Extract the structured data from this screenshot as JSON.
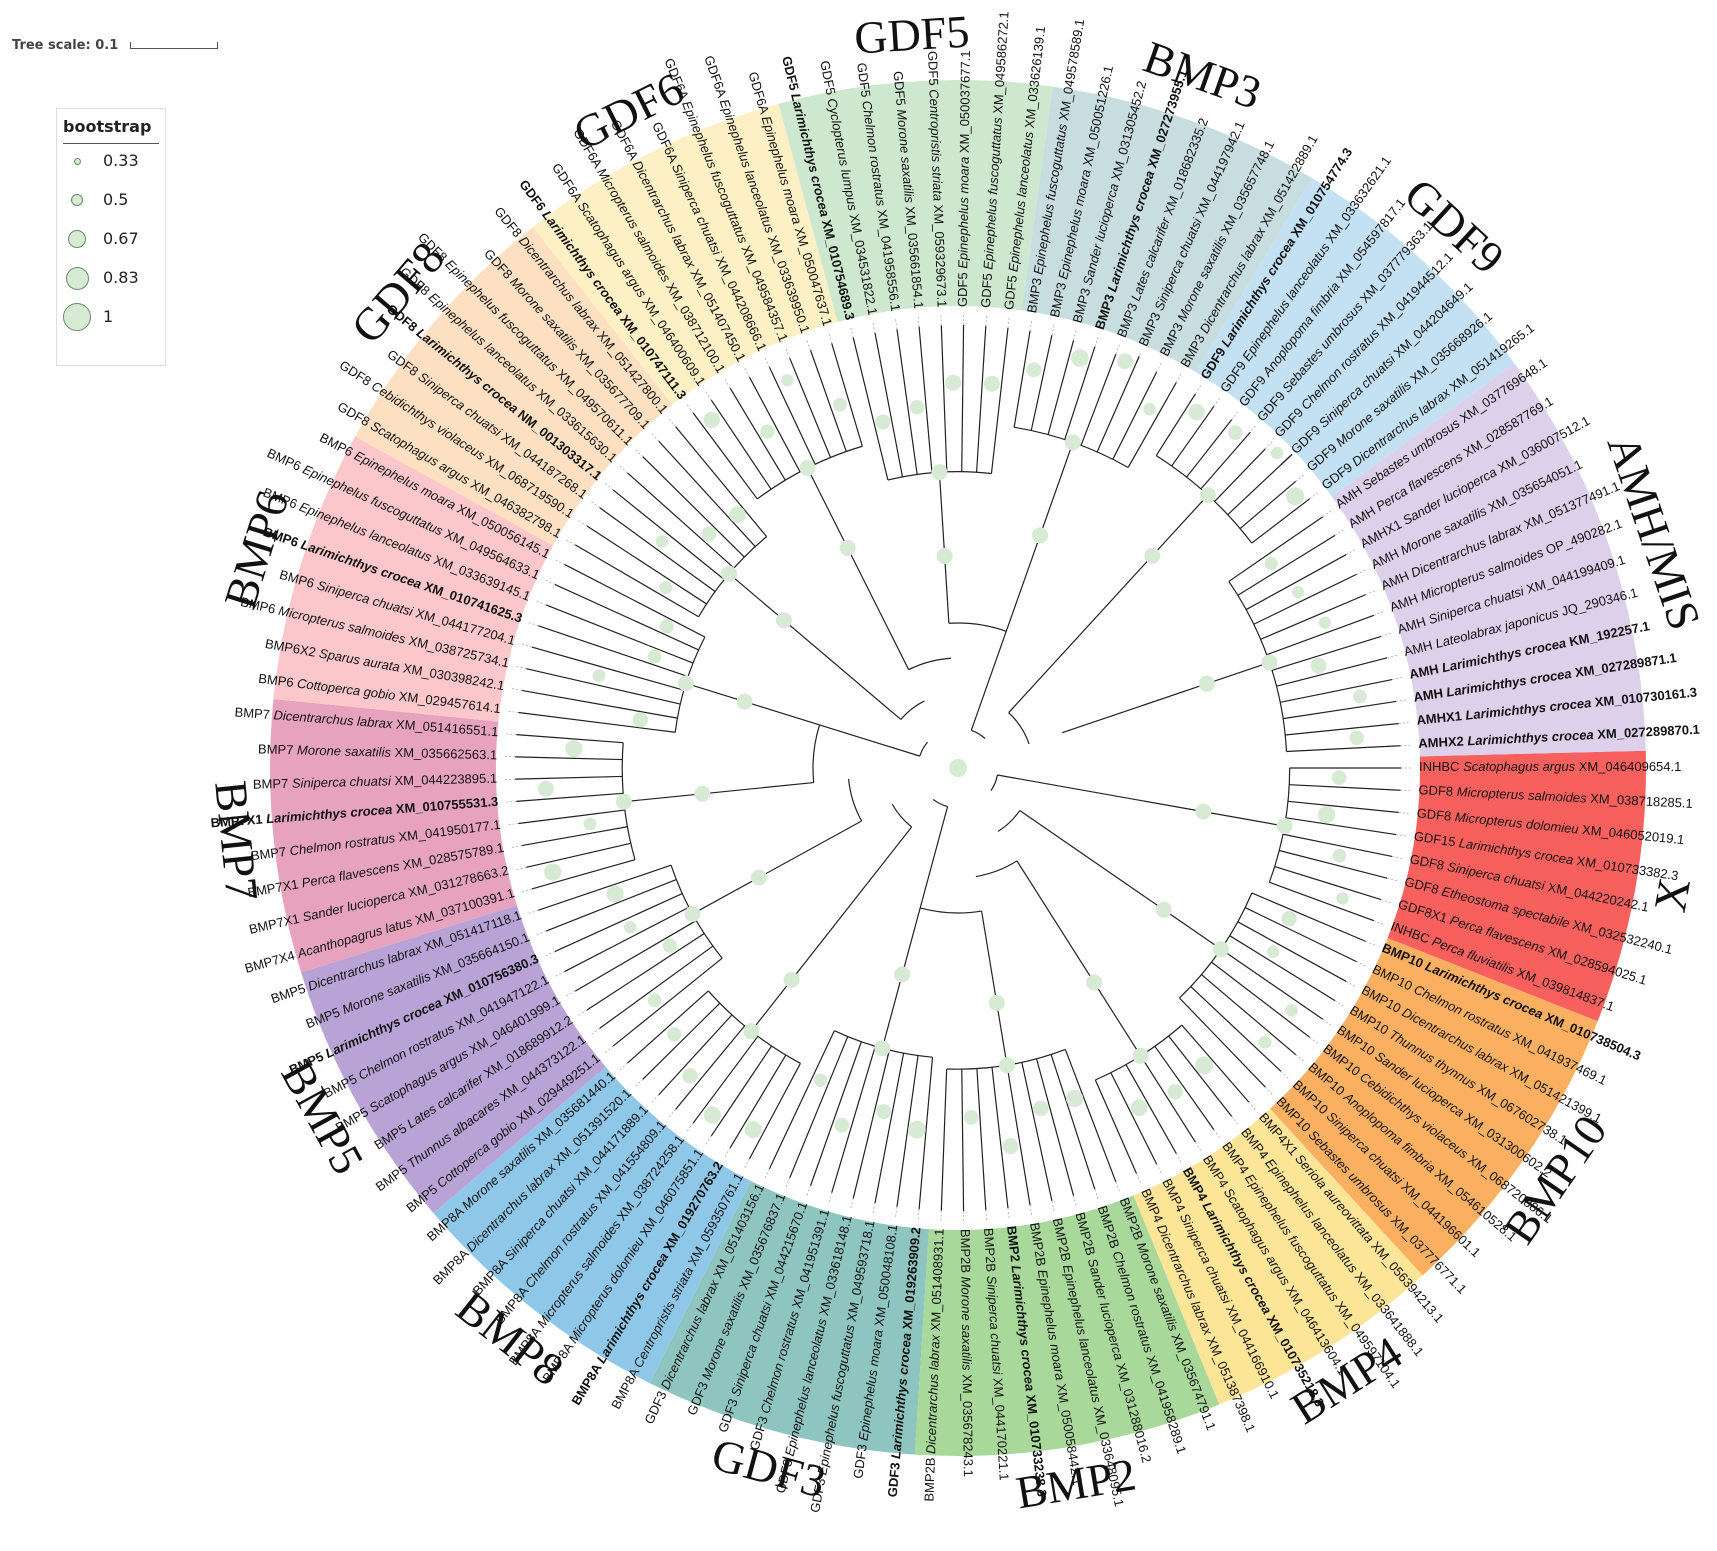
{
  "scale": {
    "label": "Tree scale: 0.1"
  },
  "legend": {
    "title": "bootstrap",
    "items": [
      {
        "value": "0.33"
      },
      {
        "value": "0.5"
      },
      {
        "value": "0.67"
      },
      {
        "value": "0.83"
      },
      {
        "value": "1"
      }
    ]
  },
  "clades": [
    {
      "name": "X",
      "color": "#f8605e",
      "leaves": [
        [
          "INHBC",
          "Scatophagus argus",
          "XM_046409654.1",
          false
        ],
        [
          "GDF8",
          "Micropterus salmoides",
          "XM_038718285.1",
          false
        ],
        [
          "GDF8",
          "Micropterus dolomieu",
          "XM_046052019.1",
          false
        ],
        [
          "GDF15",
          "Larimichthys crocea",
          "XM_010733382.3",
          false
        ],
        [
          "GDF8",
          "Siniperca chuatsi",
          "XM_044220242.1",
          false
        ],
        [
          "GDF8",
          "Etheostoma spectabile",
          "XM_032532240.1",
          false
        ],
        [
          "GDF8X1",
          "Perca flavescens",
          "XM_028594025.1",
          false
        ],
        [
          "INHBC",
          "Perca fluviatilis",
          "XM_039814837.1",
          false
        ]
      ]
    },
    {
      "name": "BMP10",
      "color": "#fbb061",
      "leaves": [
        [
          "BMP10",
          "Larimichthys crocea",
          "XM_010738504.3",
          true
        ],
        [
          "BMP10",
          "Chelmon rostratus",
          "XM_041937469.1",
          false
        ],
        [
          "BMP10",
          "Dicentrarchus labrax",
          "XM_051421399.1",
          false
        ],
        [
          "BMP10",
          "Thunnus thynnus",
          "XM_067602738.1",
          false
        ],
        [
          "BMP10",
          "Sander lucioperca",
          "XM_031300602.2",
          false
        ],
        [
          "BMP10",
          "Cebidichthys violaceus",
          "XM_068720886.1",
          false
        ],
        [
          "BMP10",
          "Anoplopoma fimbria",
          "XM_054610528.1",
          false
        ],
        [
          "BMP10",
          "Siniperca chuatsi",
          "XM_044196601.1",
          false
        ],
        [
          "BMP10",
          "Sebastes umbrosus",
          "XM_037776771.1",
          false
        ]
      ]
    },
    {
      "name": "BMP4",
      "color": "#fde598",
      "leaves": [
        [
          "BMP4X1",
          "Seriola aureovittata",
          "XM_056394213.1",
          false
        ],
        [
          "BMP4",
          "Epinephelus lanceolatus",
          "XM_033641888.1",
          false
        ],
        [
          "BMP4",
          "Epinephelus fuscoguttatus",
          "XM_049597104.1",
          false
        ],
        [
          "BMP4",
          "Scatophagus argus",
          "XM_046413604.1",
          false
        ],
        [
          "BMP4",
          "Larimichthys crocea",
          "XM_010735218.3",
          true
        ],
        [
          "BMP4",
          "Siniperca chuatsi",
          "XM_044166910.1",
          false
        ],
        [
          "BMP4",
          "Dicentrarchus labrax",
          "XM_051387398.1",
          false
        ]
      ]
    },
    {
      "name": "BMP2",
      "color": "#a8d89a",
      "leaves": [
        [
          "BMP2B",
          "Morone saxatilis",
          "XM_035674791.1",
          false
        ],
        [
          "BMP2B",
          "Chelmon rostratus",
          "XM_041958289.1",
          false
        ],
        [
          "BMP2B",
          "Sander lucioperca",
          "XM_031288016.2",
          false
        ],
        [
          "BMP2B",
          "Epinephelus lanceolatus",
          "XM_033648095.1",
          false
        ],
        [
          "BMP2B",
          "Epinephelus moara",
          "XM_050058442.1",
          false
        ],
        [
          "BMP2",
          "Larimichthys crocea",
          "XM_010733238.3",
          true
        ],
        [
          "BMP2B",
          "Siniperca chuatsi",
          "XM_044170221.1",
          false
        ],
        [
          "BMP2B",
          "Morone saxatilis",
          "XM_035678243.1",
          false
        ],
        [
          "BMP2B",
          "Dicentrarchus labrax",
          "XM_051408931.1",
          false
        ]
      ]
    },
    {
      "name": "GDF3",
      "color": "#8ec5c0",
      "leaves": [
        [
          "GDF3",
          "Larimichthys crocea",
          "XM_019263909.2",
          true
        ],
        [
          "GDF3",
          "Epinephelus moara",
          "XM_050048108.1",
          false
        ],
        [
          "GDF3",
          "Epinephelus fuscoguttatus",
          "XM_049593718.1",
          false
        ],
        [
          "GDF3",
          "Epinephelus lanceolatus",
          "XM_033618148.1",
          false
        ],
        [
          "GDF3",
          "Chelmon rostratus",
          "XM_041951391.1",
          false
        ],
        [
          "GDF3",
          "Siniperca chuatsi",
          "XM_044215670.1",
          false
        ],
        [
          "GDF3",
          "Morone saxatilis",
          "XM_035676837.1",
          false
        ],
        [
          "GDF3",
          "Dicentrarchus labrax",
          "XM_051403156.1",
          false
        ]
      ]
    },
    {
      "name": "BMP8",
      "color": "#8ec7e8",
      "leaves": [
        [
          "BMP8A",
          "Centropristis striata",
          "XM_059350761.1",
          false
        ],
        [
          "BMP8A",
          "Larimichthys crocea",
          "XM_019270763.2",
          true
        ],
        [
          "BMP8A",
          "Micropterus dolomieu",
          "XM_046075851.1",
          false
        ],
        [
          "BMP8A",
          "Micropterus salmoides",
          "XM_038724258.1",
          false
        ],
        [
          "BMP8A",
          "Chelmon rostratus",
          "XM_041554809.1",
          false
        ],
        [
          "BMP8A",
          "Siniperca chuatsi",
          "XM_044171889.1",
          false
        ],
        [
          "BMP8A",
          "Dicentrarchus labrax",
          "XM_051391520.1",
          false
        ],
        [
          "BMP8A",
          "Morone saxatilis",
          "XM_035681440.1",
          false
        ]
      ]
    },
    {
      "name": "BMP5",
      "color": "#b9a3d6",
      "leaves": [
        [
          "BMP5",
          "Cottoperca gobio",
          "XM_029449251.1",
          false
        ],
        [
          "BMP5",
          "Thunnus albacares",
          "XM_044373122.1",
          false
        ],
        [
          "BMP5",
          "Lates calcarifer",
          "XM_018689912.2",
          false
        ],
        [
          "BMP5",
          "Scatophagus argus",
          "XM_046401999.1",
          false
        ],
        [
          "BMP5",
          "Chelmon rostratus",
          "XM_041947122.1",
          false
        ],
        [
          "BMP5",
          "Larimichthys crocea",
          "XM_010756380.3",
          true
        ],
        [
          "BMP5",
          "Morone saxatilis",
          "XM_035664150.1",
          false
        ],
        [
          "BMP5",
          "Dicentrarchus labrax",
          "XM_051417118.1",
          false
        ]
      ]
    },
    {
      "name": "BMP7",
      "color": "#e7a3bd",
      "leaves": [
        [
          "BMP7X4",
          "Acanthopagrus latus",
          "XM_037100391.1",
          false
        ],
        [
          "BMP7X1",
          "Sander lucioperca",
          "XM_031278663.2",
          false
        ],
        [
          "BMP7X1",
          "Perca flavescens",
          "XM_028575789.1",
          false
        ],
        [
          "BMP7",
          "Chelmon rostratus",
          "XM_041950177.1",
          false
        ],
        [
          "BMP7X1",
          "Larimichthys crocea",
          "XM_010755531.3",
          true
        ],
        [
          "BMP7",
          "Siniperca chuatsi",
          "XM_044223895.1",
          false
        ],
        [
          "BMP7",
          "Morone saxatilis",
          "XM_035662563.1",
          false
        ],
        [
          "BMP7",
          "Dicentrarchus labrax",
          "XM_051416551.1",
          false
        ]
      ]
    },
    {
      "name": "BMP6",
      "color": "#fcc7cb",
      "leaves": [
        [
          "BMP6",
          "Cottoperca gobio",
          "XM_029457614.1",
          false
        ],
        [
          "BMP6X2",
          "Sparus aurata",
          "XM_030398242.1",
          false
        ],
        [
          "BMP6",
          "Micropterus salmoides",
          "XM_038725734.1",
          false
        ],
        [
          "BMP6",
          "Siniperca chuatsi",
          "XM_044177204.1",
          false
        ],
        [
          "BMP6",
          "Larimichthys crocea",
          "XM_010741625.3",
          true
        ],
        [
          "BMP6",
          "Epinephelus lanceolatus",
          "XM_033639145.1",
          false
        ],
        [
          "BMP6",
          "Epinephelus fuscoguttatus",
          "XM_049564633.1",
          false
        ],
        [
          "BMP6",
          "Epinephelus moara",
          "XM_050056145.1",
          false
        ]
      ]
    },
    {
      "name": "GDF8",
      "color": "#fde0c2",
      "leaves": [
        [
          "GDF8",
          "Scatophagus argus",
          "XM_046382798.1",
          false
        ],
        [
          "GDF8",
          "Cebidichthys violaceus",
          "XM_068719590.1",
          false
        ],
        [
          "GDF8",
          "Siniperca chuatsi",
          "XM_044187268.1",
          false
        ],
        [
          "GDF8",
          "Larimichthys crocea",
          "NM_001303317.1",
          true
        ],
        [
          "GDF8",
          "Epinephelus lanceolatus",
          "XM_033615630.1",
          false
        ],
        [
          "GDF8",
          "Epinephelus fuscoguttatus",
          "XM_049570611.1",
          false
        ],
        [
          "GDF8",
          "Morone saxatilis",
          "XM_035677709.1",
          false
        ],
        [
          "GDF8",
          "Dicentrarchus labrax",
          "XM_051427800.1",
          false
        ]
      ]
    },
    {
      "name": "GDF6",
      "color": "#fdf0c4",
      "leaves": [
        [
          "GDF6",
          "Larimichthys crocea",
          "XM_010747111.3",
          true
        ],
        [
          "GDF6A",
          "Scatophagus argus",
          "XM_046400609.1",
          false
        ],
        [
          "GDF6A",
          "Micropterus salmoides",
          "XM_038712100.1",
          false
        ],
        [
          "GDF6A",
          "Dicentrarchus labrax",
          "XM_051407450.1",
          false
        ],
        [
          "GDF6A",
          "Siniperca chuatsi",
          "XM_044208666.1",
          false
        ],
        [
          "GDF6A",
          "Epinephelus fuscoguttatus",
          "XM_049584357.1",
          false
        ],
        [
          "GDF6A",
          "Epinephelus lanceolatus",
          "XM_033639950.1",
          false
        ],
        [
          "GDF6A",
          "Epinephelus moara",
          "XM_050047637.1",
          false
        ]
      ]
    },
    {
      "name": "GDF5",
      "color": "#cde8cf",
      "leaves": [
        [
          "GDF5",
          "Larimichthys crocea",
          "XM_010754689.3",
          true
        ],
        [
          "GDF5",
          "Cyclopterus lumpus",
          "XM_034531822.1",
          false
        ],
        [
          "GDF5",
          "Chelmon rostratus",
          "XM_041958556.1",
          false
        ],
        [
          "GDF5",
          "Morone saxatilis",
          "XM_035661854.1",
          false
        ],
        [
          "GDF5",
          "Centropristis striata",
          "XM_059329673.1",
          false
        ],
        [
          "GDF5",
          "Epinephelus moara",
          "XM_050037677.1",
          false
        ],
        [
          "GDF5",
          "Epinephelus fuscoguttatus",
          "XM_049586272.1",
          false
        ],
        [
          "GDF5",
          "Epinephelus lanceolatus",
          "XM_033626139.1",
          false
        ]
      ]
    },
    {
      "name": "BMP3",
      "color": "#c8dde0",
      "leaves": [
        [
          "BMP3",
          "Epinephelus fuscoguttatus",
          "XM_049578589.1",
          false
        ],
        [
          "BMP3",
          "Epinephelus moara",
          "XM_050051226.1",
          false
        ],
        [
          "BMP3",
          "Sander lucioperca",
          "XM_031305452.2",
          false
        ],
        [
          "BMP3",
          "Larimichthys crocea",
          "XM_027273955.1",
          true
        ],
        [
          "BMP3",
          "Lates calcarifer",
          "XM_018682335.2",
          false
        ],
        [
          "BMP3",
          "Siniperca chuatsi",
          "XM_044197942.1",
          false
        ],
        [
          "BMP3",
          "Morone saxatilis",
          "XM_035657748.1",
          false
        ],
        [
          "BMP3",
          "Dicentrarchus labrax",
          "XM_051422889.1",
          false
        ]
      ]
    },
    {
      "name": "GDF9",
      "color": "#c4e1f3",
      "leaves": [
        [
          "GDF9",
          "Larimichthys crocea",
          "XM_010754774.3",
          true
        ],
        [
          "GDF9",
          "Epinephelus lanceolatus",
          "XM_033632621.1",
          false
        ],
        [
          "GDF9",
          "Anoplopoma fimbria",
          "XM_054597817.1",
          false
        ],
        [
          "GDF9",
          "Sebastes umbrosus",
          "XM_037779363.1",
          false
        ],
        [
          "GDF9",
          "Chelmon rostratus",
          "XM_041944512.1",
          false
        ],
        [
          "GDF9",
          "Siniperca chuatsi",
          "XM_044204649.1",
          false
        ],
        [
          "GDF9",
          "Morone saxatilis",
          "XM_035668926.1",
          false
        ],
        [
          "GDF9",
          "Dicentrarchus labrax",
          "XM_051419265.1",
          false
        ]
      ]
    },
    {
      "name": "AMH/MIS",
      "color": "#ddd0ea",
      "leaves": [
        [
          "AMH",
          "Sebastes umbrosus",
          "XM_037769648.1",
          false
        ],
        [
          "AMH",
          "Perca flavescens",
          "XM_028587769.1",
          false
        ],
        [
          "AMHX1",
          "Sander lucioperca",
          "XM_036007512.1",
          false
        ],
        [
          "AMH",
          "Morone saxatilis",
          "XM_035654051.1",
          false
        ],
        [
          "AMH",
          "Dicentrarchus labrax",
          "XM_051377491.1",
          false
        ],
        [
          "AMH",
          "Micropterus salmoides",
          "OP_490282.1",
          false
        ],
        [
          "AMH",
          "Siniperca chuatsi",
          "XM_044199409.1",
          false
        ],
        [
          "AMH",
          "Lateolabrax japonicus",
          "JQ_290346.1",
          false
        ],
        [
          "AMH",
          "Larimichthys crocea",
          "KM_192257.1",
          true
        ],
        [
          "AMH",
          "Larimichthys crocea",
          "XM_027289871.1",
          true
        ],
        [
          "AMHX1",
          "Larimichthys crocea",
          "XM_010730161.3",
          true
        ],
        [
          "AMHX2",
          "Larimichthys crocea",
          "XM_027289870.1",
          true
        ]
      ]
    }
  ]
}
